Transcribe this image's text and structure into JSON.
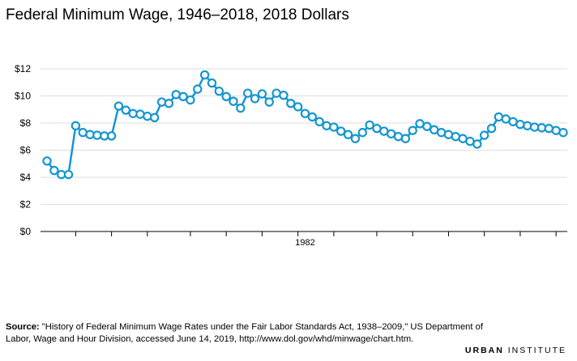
{
  "chart_data": {
    "type": "line",
    "title": "Federal Minimum Wage, 1946–2018, 2018 Dollars",
    "xlabel": "",
    "ylabel": "",
    "ylim": [
      0,
      12
    ],
    "y_ticks": [
      0,
      2,
      4,
      6,
      8,
      10,
      12
    ],
    "y_tick_labels": [
      "$0",
      "$2",
      "$4",
      "$6",
      "$8",
      "$10",
      "$12"
    ],
    "x_range": [
      1946,
      2018
    ],
    "x_tick_label_year": 1982,
    "x_tick_label": "1982",
    "x_tick_years": [
      1950,
      1955,
      1960,
      1966,
      1971,
      1976,
      1981,
      1986,
      1992,
      1997,
      2002,
      2007,
      2012,
      2017
    ],
    "grid": "horizontal",
    "legend": "none",
    "series": [
      {
        "x": [
          1946,
          1947,
          1948,
          1949,
          1950,
          1951,
          1952,
          1953,
          1954,
          1955,
          1956,
          1957,
          1958,
          1959,
          1960,
          1961,
          1962,
          1963,
          1964,
          1965,
          1966,
          1967,
          1968,
          1969,
          1970,
          1971,
          1972,
          1973,
          1974,
          1975,
          1976,
          1977,
          1978,
          1979,
          1980,
          1981,
          1982,
          1983,
          1984,
          1985,
          1986,
          1987,
          1988,
          1989,
          1990,
          1991,
          1992,
          1993,
          1994,
          1995,
          1996,
          1997,
          1998,
          1999,
          2000,
          2001,
          2002,
          2003,
          2004,
          2005,
          2006,
          2007,
          2008,
          2009,
          2010,
          2011,
          2012,
          2013,
          2014,
          2015,
          2016,
          2017,
          2018
        ],
        "y": [
          5.2,
          4.5,
          4.2,
          4.2,
          7.8,
          7.3,
          7.15,
          7.1,
          7.05,
          7.05,
          9.25,
          8.95,
          8.7,
          8.65,
          8.5,
          8.4,
          9.55,
          9.45,
          10.1,
          9.95,
          9.7,
          10.5,
          11.55,
          10.95,
          10.35,
          9.95,
          9.6,
          9.1,
          10.2,
          9.8,
          10.15,
          9.55,
          10.2,
          10.05,
          9.45,
          9.2,
          8.7,
          8.45,
          8.1,
          7.8,
          7.7,
          7.4,
          7.15,
          6.85,
          7.3,
          7.85,
          7.6,
          7.4,
          7.2,
          7.0,
          6.85,
          7.45,
          7.95,
          7.75,
          7.5,
          7.3,
          7.15,
          7.0,
          6.85,
          6.65,
          6.45,
          7.1,
          7.6,
          8.45,
          8.3,
          8.1,
          7.9,
          7.8,
          7.7,
          7.65,
          7.6,
          7.45,
          7.3
        ]
      }
    ],
    "color": "#1696d2"
  },
  "source": {
    "label": "Source:",
    "text": "\"History of Federal Minimum Wage Rates under the Fair Labor Standards Act, 1938–2009,\" US Department of Labor, Wage and Hour Division, accessed June 14, 2019, http://www.dol.gov/whd/minwage/chart.htm."
  },
  "brand": {
    "part1": "URBAN",
    "part2": "INSTITUTE"
  }
}
